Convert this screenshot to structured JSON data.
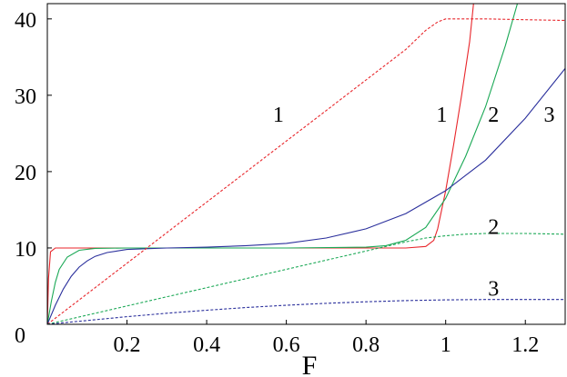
{
  "chart_data": {
    "type": "line",
    "xlabel": "F",
    "ylabel": "",
    "xlim": [
      0,
      1.3
    ],
    "ylim": [
      0,
      42
    ],
    "x_ticks": [
      {
        "value": 0.2,
        "label": "0.2"
      },
      {
        "value": 0.4,
        "label": "0.4"
      },
      {
        "value": 0.6,
        "label": "0.6"
      },
      {
        "value": 0.8,
        "label": "0.8"
      },
      {
        "value": 1.0,
        "label": "1"
      },
      {
        "value": 1.2,
        "label": "1.2"
      }
    ],
    "y_ticks": [
      {
        "value": 0,
        "label": "0"
      },
      {
        "value": 10,
        "label": "10"
      },
      {
        "value": 20,
        "label": "20"
      },
      {
        "value": 30,
        "label": "30"
      },
      {
        "value": 40,
        "label": "40"
      }
    ],
    "grid": false,
    "colors": {
      "1": "#e8262b",
      "2": "#1aa855",
      "3": "#2a2f9c"
    },
    "series": [
      {
        "key": "1",
        "style": "solid",
        "color": "#e8262b",
        "points": [
          [
            0,
            0
          ],
          [
            0.003,
            6
          ],
          [
            0.008,
            9.5
          ],
          [
            0.02,
            10
          ],
          [
            0.1,
            10
          ],
          [
            0.3,
            10
          ],
          [
            0.5,
            10
          ],
          [
            0.7,
            10
          ],
          [
            0.9,
            10
          ],
          [
            0.95,
            10.2
          ],
          [
            0.97,
            11
          ],
          [
            0.98,
            12.5
          ],
          [
            0.99,
            15
          ],
          [
            1.0,
            17.5
          ],
          [
            1.02,
            23.5
          ],
          [
            1.04,
            30
          ],
          [
            1.06,
            37
          ],
          [
            1.07,
            42
          ]
        ]
      },
      {
        "key": "2",
        "style": "solid",
        "color": "#1aa855",
        "points": [
          [
            0,
            0
          ],
          [
            0.01,
            3
          ],
          [
            0.02,
            5.5
          ],
          [
            0.03,
            7.2
          ],
          [
            0.05,
            8.8
          ],
          [
            0.08,
            9.7
          ],
          [
            0.12,
            9.95
          ],
          [
            0.2,
            10
          ],
          [
            0.4,
            10
          ],
          [
            0.6,
            10
          ],
          [
            0.8,
            10.1
          ],
          [
            0.85,
            10.3
          ],
          [
            0.9,
            11
          ],
          [
            0.95,
            12.7
          ],
          [
            1.0,
            16.5
          ],
          [
            1.05,
            22
          ],
          [
            1.1,
            28.5
          ],
          [
            1.15,
            36.5
          ],
          [
            1.18,
            42
          ]
        ]
      },
      {
        "key": "3",
        "style": "solid",
        "color": "#2a2f9c",
        "points": [
          [
            0,
            0
          ],
          [
            0.02,
            2.5
          ],
          [
            0.04,
            4.6
          ],
          [
            0.06,
            6.3
          ],
          [
            0.08,
            7.5
          ],
          [
            0.1,
            8.3
          ],
          [
            0.12,
            8.9
          ],
          [
            0.15,
            9.4
          ],
          [
            0.2,
            9.8
          ],
          [
            0.3,
            10
          ],
          [
            0.4,
            10.1
          ],
          [
            0.5,
            10.3
          ],
          [
            0.6,
            10.6
          ],
          [
            0.7,
            11.3
          ],
          [
            0.8,
            12.5
          ],
          [
            0.9,
            14.5
          ],
          [
            1.0,
            17.5
          ],
          [
            1.1,
            21.5
          ],
          [
            1.2,
            27
          ],
          [
            1.3,
            33.5
          ]
        ]
      },
      {
        "key": "1",
        "style": "dashed",
        "color": "#e8262b",
        "points": [
          [
            0,
            0
          ],
          [
            0.1,
            4
          ],
          [
            0.2,
            8
          ],
          [
            0.3,
            12
          ],
          [
            0.4,
            16
          ],
          [
            0.5,
            20
          ],
          [
            0.6,
            24
          ],
          [
            0.7,
            28
          ],
          [
            0.8,
            32
          ],
          [
            0.9,
            36
          ],
          [
            0.95,
            38.5
          ],
          [
            0.98,
            39.6
          ],
          [
            1.0,
            40
          ],
          [
            1.1,
            40
          ],
          [
            1.2,
            39.9
          ],
          [
            1.3,
            39.8
          ]
        ]
      },
      {
        "key": "2",
        "style": "dashed",
        "color": "#1aa855",
        "points": [
          [
            0,
            0
          ],
          [
            0.1,
            1.2
          ],
          [
            0.2,
            2.4
          ],
          [
            0.3,
            3.6
          ],
          [
            0.4,
            4.8
          ],
          [
            0.5,
            6
          ],
          [
            0.6,
            7.2
          ],
          [
            0.7,
            8.4
          ],
          [
            0.8,
            9.6
          ],
          [
            0.9,
            10.8
          ],
          [
            0.95,
            11.3
          ],
          [
            1.0,
            11.6
          ],
          [
            1.05,
            11.8
          ],
          [
            1.1,
            11.9
          ],
          [
            1.2,
            11.9
          ],
          [
            1.3,
            11.8
          ]
        ]
      },
      {
        "key": "3",
        "style": "dashed",
        "color": "#2a2f9c",
        "points": [
          [
            0,
            0
          ],
          [
            0.1,
            0.5
          ],
          [
            0.2,
            1.0
          ],
          [
            0.3,
            1.45
          ],
          [
            0.4,
            1.85
          ],
          [
            0.5,
            2.2
          ],
          [
            0.6,
            2.5
          ],
          [
            0.7,
            2.75
          ],
          [
            0.8,
            2.95
          ],
          [
            0.9,
            3.1
          ],
          [
            1.0,
            3.2
          ],
          [
            1.1,
            3.25
          ],
          [
            1.2,
            3.25
          ],
          [
            1.3,
            3.25
          ]
        ]
      }
    ],
    "annotations": [
      {
        "text": "1",
        "x": 0.58,
        "y": 27.5
      },
      {
        "text": "1",
        "x": 0.99,
        "y": 27.5
      },
      {
        "text": "2",
        "x": 1.12,
        "y": 27.5
      },
      {
        "text": "3",
        "x": 1.26,
        "y": 27.5
      },
      {
        "text": "2",
        "x": 1.12,
        "y": 12.8
      },
      {
        "text": "3",
        "x": 1.12,
        "y": 4.7
      }
    ]
  }
}
